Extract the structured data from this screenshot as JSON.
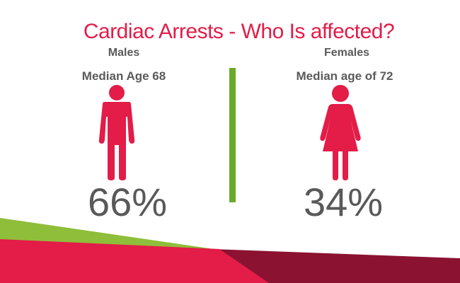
{
  "title": "Cardiac Arrests - Who Is affected?",
  "males": {
    "label": "Males",
    "median_age": "Median Age 68",
    "percent": "66%"
  },
  "females": {
    "label": "Females",
    "median_age": "Median age of 72",
    "percent": "34%"
  },
  "icons": {
    "male": "male-person-icon",
    "female": "female-person-icon"
  },
  "colors": {
    "brand_red": "#e31c48",
    "accent_green": "#6aaa2a",
    "dark_red": "#8b1230",
    "text_gray": "#595959"
  }
}
